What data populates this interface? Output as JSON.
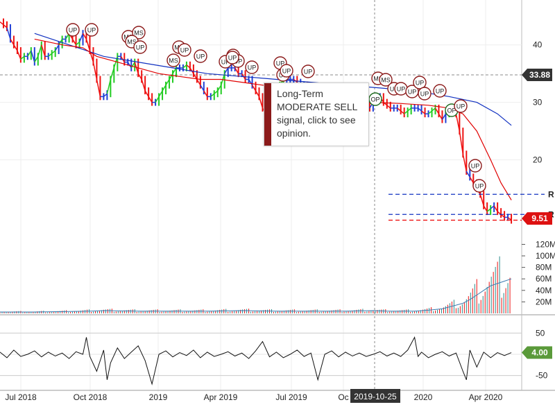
{
  "colors": {
    "up": "#22cc22",
    "down": "#ee1111",
    "neutral": "#1f3fd6",
    "ma_short": "#e00000",
    "ma_long": "#1030c0",
    "price_badge": "#333333",
    "support_badge": "#dd1111",
    "osc_badge": "#5a9a3a",
    "signal_circle": "#8b1a1a",
    "op_circle": "#1e6b1e"
  },
  "tooltip": {
    "text": "Long-Term MODERATE SELL signal, click to see opinion."
  },
  "chart_data": [
    {
      "type": "line",
      "panel": "price",
      "price_axis_ticks": [
        40,
        30,
        20
      ],
      "x_axis_labels": [
        "Jul 2018",
        "Oct 2018",
        "2019",
        "Apr 2019",
        "Jul 2019",
        "Oc",
        "2020",
        "Apr 2020"
      ],
      "crosshair_date": "2019-10-25",
      "crosshair_price": "33.88",
      "last_price": "9.51",
      "resistance_labels": [
        "R",
        "R"
      ],
      "ylim": [
        8,
        46
      ],
      "price_series": [
        [
          0,
          44
        ],
        [
          5,
          43.5
        ],
        [
          10,
          43
        ],
        [
          15,
          41
        ],
        [
          20,
          40
        ],
        [
          25,
          39
        ],
        [
          30,
          37.5
        ],
        [
          35,
          38
        ],
        [
          40,
          38
        ],
        [
          45,
          39
        ],
        [
          50,
          37
        ],
        [
          55,
          38
        ],
        [
          60,
          40
        ],
        [
          65,
          38
        ],
        [
          70,
          38
        ],
        [
          75,
          38.5
        ],
        [
          80,
          39
        ],
        [
          85,
          40
        ],
        [
          90,
          41
        ],
        [
          95,
          41
        ],
        [
          100,
          42
        ],
        [
          105,
          41
        ],
        [
          110,
          40
        ],
        [
          115,
          40.5
        ],
        [
          120,
          42
        ],
        [
          125,
          41
        ],
        [
          130,
          39
        ],
        [
          135,
          37
        ],
        [
          140,
          34
        ],
        [
          145,
          31
        ],
        [
          150,
          31
        ],
        [
          155,
          31.5
        ],
        [
          160,
          34
        ],
        [
          165,
          36
        ],
        [
          170,
          38
        ],
        [
          175,
          38
        ],
        [
          180,
          37
        ],
        [
          185,
          37
        ],
        [
          190,
          36
        ],
        [
          195,
          37
        ],
        [
          200,
          35
        ],
        [
          205,
          34
        ],
        [
          210,
          32
        ],
        [
          215,
          31
        ],
        [
          220,
          30
        ],
        [
          225,
          30
        ],
        [
          230,
          31
        ],
        [
          235,
          32
        ],
        [
          240,
          33
        ],
        [
          245,
          34
        ],
        [
          250,
          35
        ],
        [
          255,
          36
        ],
        [
          260,
          36
        ],
        [
          265,
          36
        ],
        [
          270,
          36.5
        ],
        [
          275,
          36
        ],
        [
          280,
          35
        ],
        [
          285,
          34
        ],
        [
          290,
          33
        ],
        [
          295,
          32
        ],
        [
          300,
          31
        ],
        [
          305,
          31
        ],
        [
          310,
          31.5
        ],
        [
          315,
          32
        ],
        [
          320,
          33
        ],
        [
          325,
          35
        ],
        [
          330,
          36
        ],
        [
          335,
          36
        ],
        [
          340,
          36
        ],
        [
          345,
          35
        ],
        [
          350,
          35
        ],
        [
          355,
          34
        ],
        [
          360,
          34
        ],
        [
          365,
          33
        ],
        [
          370,
          32
        ],
        [
          375,
          31
        ],
        [
          380,
          29
        ],
        [
          385,
          28
        ],
        [
          390,
          28.5
        ],
        [
          395,
          30
        ],
        [
          400,
          31
        ],
        [
          405,
          33
        ],
        [
          410,
          34
        ],
        [
          415,
          34
        ],
        [
          420,
          34
        ],
        [
          425,
          34
        ],
        [
          430,
          33.5
        ],
        [
          435,
          33
        ],
        [
          440,
          33
        ],
        [
          445,
          32
        ],
        [
          450,
          31
        ],
        [
          455,
          30
        ],
        [
          460,
          30.5
        ],
        [
          465,
          30
        ],
        [
          470,
          29.5
        ],
        [
          475,
          29
        ],
        [
          480,
          29
        ],
        [
          485,
          28.5
        ],
        [
          490,
          29
        ],
        [
          495,
          30
        ],
        [
          500,
          31
        ],
        [
          505,
          31
        ],
        [
          510,
          30
        ],
        [
          515,
          30
        ],
        [
          520,
          30.5
        ],
        [
          525,
          31
        ],
        [
          530,
          30
        ],
        [
          535,
          29
        ],
        [
          540,
          30
        ],
        [
          545,
          31
        ],
        [
          550,
          31
        ],
        [
          555,
          30
        ],
        [
          560,
          29.5
        ],
        [
          565,
          29
        ],
        [
          570,
          29
        ],
        [
          575,
          29
        ],
        [
          580,
          28.5
        ],
        [
          585,
          28
        ],
        [
          590,
          28.5
        ],
        [
          595,
          29
        ],
        [
          600,
          29
        ],
        [
          605,
          29
        ],
        [
          610,
          28.5
        ],
        [
          615,
          28
        ],
        [
          620,
          28
        ],
        [
          625,
          28.5
        ],
        [
          630,
          29
        ],
        [
          635,
          28
        ],
        [
          640,
          27
        ],
        [
          645,
          28
        ],
        [
          650,
          29
        ],
        [
          655,
          29
        ],
        [
          660,
          28
        ],
        [
          665,
          25
        ],
        [
          670,
          21
        ],
        [
          675,
          18
        ],
        [
          680,
          17
        ],
        [
          685,
          16
        ],
        [
          690,
          15
        ],
        [
          695,
          14
        ],
        [
          700,
          12
        ],
        [
          705,
          11
        ],
        [
          710,
          11.5
        ],
        [
          715,
          12
        ],
        [
          720,
          11
        ],
        [
          725,
          10.5
        ],
        [
          730,
          10
        ],
        [
          735,
          10
        ],
        [
          740,
          9.5
        ]
      ],
      "ma_short": [
        [
          50,
          41
        ],
        [
          90,
          40
        ],
        [
          120,
          39.5
        ],
        [
          140,
          38
        ],
        [
          170,
          37
        ],
        [
          200,
          36
        ],
        [
          230,
          35
        ],
        [
          260,
          34.5
        ],
        [
          290,
          34
        ],
        [
          320,
          34
        ],
        [
          350,
          33.5
        ],
        [
          380,
          33
        ],
        [
          410,
          32.5
        ],
        [
          440,
          32
        ],
        [
          470,
          31
        ],
        [
          500,
          30.5
        ],
        [
          540,
          30
        ],
        [
          580,
          29.8
        ],
        [
          620,
          29.5
        ],
        [
          650,
          29
        ],
        [
          670,
          28
        ],
        [
          690,
          25
        ],
        [
          710,
          20
        ],
        [
          725,
          16
        ],
        [
          740,
          13
        ]
      ],
      "ma_long": [
        [
          50,
          42
        ],
        [
          100,
          40
        ],
        [
          150,
          38
        ],
        [
          200,
          37
        ],
        [
          250,
          36
        ],
        [
          300,
          35
        ],
        [
          350,
          34.5
        ],
        [
          400,
          34
        ],
        [
          450,
          33.5
        ],
        [
          500,
          33
        ],
        [
          550,
          32.5
        ],
        [
          600,
          32
        ],
        [
          650,
          31
        ],
        [
          690,
          30
        ],
        [
          720,
          28
        ],
        [
          740,
          26
        ]
      ],
      "support_resistance_levels": [
        14,
        10.5,
        9.5
      ]
    },
    {
      "type": "bar",
      "panel": "volume",
      "volume_axis_labels": [
        "120M",
        "100M",
        "80M",
        "60M",
        "40M",
        "20M"
      ],
      "ylim": [
        0,
        135
      ],
      "volume_series": [
        [
          0,
          3
        ],
        [
          50,
          3
        ],
        [
          100,
          4
        ],
        [
          130,
          5
        ],
        [
          150,
          6
        ],
        [
          200,
          5
        ],
        [
          250,
          5
        ],
        [
          300,
          5
        ],
        [
          350,
          6
        ],
        [
          400,
          5
        ],
        [
          450,
          5
        ],
        [
          500,
          5
        ],
        [
          540,
          6
        ],
        [
          560,
          5
        ],
        [
          600,
          5
        ],
        [
          620,
          7
        ],
        [
          640,
          10
        ],
        [
          660,
          18
        ],
        [
          670,
          22
        ],
        [
          680,
          30
        ],
        [
          690,
          40
        ],
        [
          700,
          50
        ],
        [
          710,
          60
        ],
        [
          720,
          65
        ],
        [
          730,
          70
        ],
        [
          740,
          75
        ]
      ]
    },
    {
      "type": "line",
      "panel": "oscillator",
      "osc_axis_labels": [
        "50",
        "-50"
      ],
      "osc_value": "4.00",
      "ylim": [
        -80,
        80
      ],
      "osc_series": [
        [
          0,
          5
        ],
        [
          10,
          -8
        ],
        [
          20,
          10
        ],
        [
          30,
          -5
        ],
        [
          40,
          0
        ],
        [
          50,
          8
        ],
        [
          60,
          -6
        ],
        [
          70,
          5
        ],
        [
          80,
          -4
        ],
        [
          90,
          3
        ],
        [
          100,
          -10
        ],
        [
          110,
          6
        ],
        [
          120,
          0
        ],
        [
          125,
          40
        ],
        [
          130,
          -5
        ],
        [
          140,
          -40
        ],
        [
          150,
          10
        ],
        [
          155,
          -60
        ],
        [
          160,
          -20
        ],
        [
          170,
          15
        ],
        [
          180,
          -10
        ],
        [
          190,
          5
        ],
        [
          200,
          20
        ],
        [
          210,
          -15
        ],
        [
          220,
          -70
        ],
        [
          230,
          0
        ],
        [
          240,
          8
        ],
        [
          250,
          -6
        ],
        [
          260,
          4
        ],
        [
          270,
          -3
        ],
        [
          280,
          10
        ],
        [
          290,
          -8
        ],
        [
          300,
          5
        ],
        [
          310,
          -5
        ],
        [
          320,
          0
        ],
        [
          330,
          6
        ],
        [
          340,
          -4
        ],
        [
          350,
          3
        ],
        [
          360,
          -10
        ],
        [
          370,
          8
        ],
        [
          380,
          30
        ],
        [
          390,
          -6
        ],
        [
          400,
          5
        ],
        [
          410,
          -8
        ],
        [
          420,
          0
        ],
        [
          430,
          10
        ],
        [
          440,
          -5
        ],
        [
          450,
          3
        ],
        [
          460,
          -60
        ],
        [
          470,
          0
        ],
        [
          480,
          8
        ],
        [
          490,
          -6
        ],
        [
          500,
          5
        ],
        [
          510,
          -4
        ],
        [
          520,
          3
        ],
        [
          530,
          -5
        ],
        [
          540,
          0
        ],
        [
          550,
          6
        ],
        [
          560,
          -4
        ],
        [
          570,
          3
        ],
        [
          580,
          -5
        ],
        [
          590,
          10
        ],
        [
          600,
          40
        ],
        [
          605,
          -5
        ],
        [
          610,
          5
        ],
        [
          620,
          -8
        ],
        [
          630,
          0
        ],
        [
          640,
          6
        ],
        [
          650,
          -4
        ],
        [
          660,
          3
        ],
        [
          670,
          -40
        ],
        [
          675,
          -60
        ],
        [
          680,
          10
        ],
        [
          690,
          -30
        ],
        [
          700,
          5
        ],
        [
          710,
          -8
        ],
        [
          720,
          4
        ],
        [
          730,
          -3
        ],
        [
          740,
          4
        ]
      ]
    }
  ],
  "signals": [
    {
      "label": "UP",
      "x": 10,
      "y": 42
    },
    {
      "label": "UP",
      "x": 20,
      "y": 42
    },
    {
      "label": "MS",
      "x": 35,
      "y": 41
    },
    {
      "label": "MS",
      "x": 40,
      "y": 40
    },
    {
      "label": "MS",
      "x": 45,
      "y": 39
    },
    {
      "label": "UP",
      "x": 50,
      "y": 39
    },
    {
      "label": "MS",
      "x": 60,
      "y": 37
    },
    {
      "label": "MS",
      "x": 65,
      "y": 38
    },
    {
      "label": "UP",
      "x": 70,
      "y": 37
    },
    {
      "label": "UP",
      "x": 80,
      "y": 36
    },
    {
      "label": "UP",
      "x": 85,
      "y": 36
    },
    {
      "label": "UP",
      "x": 90,
      "y": 35
    },
    {
      "label": "UP",
      "x": 100,
      "y": 36
    },
    {
      "label": "UP",
      "x": 105,
      "y": 34
    },
    {
      "label": "UP",
      "x": 110,
      "y": 34
    },
    {
      "label": "UP",
      "x": 120,
      "y": 30
    },
    {
      "label": "UP",
      "x": 130,
      "y": 30
    },
    {
      "label": "UP",
      "x": 140,
      "y": 29
    },
    {
      "label": "UP",
      "x": 150,
      "y": 30
    },
    {
      "label": "UP",
      "x": 160,
      "y": 30
    },
    {
      "label": "UP",
      "x": 170,
      "y": 29
    },
    {
      "label": "UP",
      "x": 175,
      "y": 25
    },
    {
      "label": "UP",
      "x": 180,
      "y": 18
    }
  ],
  "signal_circles": [
    {
      "label": "UP"
    },
    {
      "label": "UP"
    },
    {
      "label": "MS"
    },
    {
      "label": "MS"
    },
    {
      "label": "MS"
    },
    {
      "label": "UP"
    },
    {
      "label": "MS"
    },
    {
      "label": "MS"
    },
    {
      "label": "UP"
    },
    {
      "label": "MS"
    },
    {
      "label": "UP"
    },
    {
      "label": "UP"
    },
    {
      "label": "UP"
    },
    {
      "label": "UP"
    },
    {
      "label": "UP"
    },
    {
      "label": "UP"
    },
    {
      "label": "UP"
    },
    {
      "label": "UP"
    },
    {
      "label": "UP"
    },
    {
      "label": "MS"
    },
    {
      "label": "MS"
    },
    {
      "label": "UP"
    },
    {
      "label": "UP"
    },
    {
      "label": "UP"
    },
    {
      "label": "OP"
    },
    {
      "label": "UP"
    },
    {
      "label": "UP"
    },
    {
      "label": "UP"
    },
    {
      "label": "OP"
    },
    {
      "label": "UP"
    },
    {
      "label": "UP"
    }
  ]
}
